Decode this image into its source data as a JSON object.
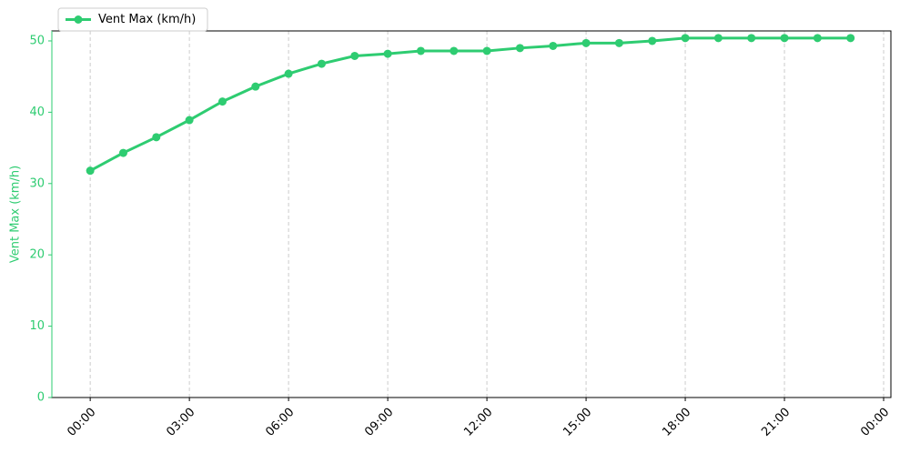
{
  "chart_data": {
    "type": "line",
    "x": [
      0,
      1,
      2,
      3,
      4,
      5,
      6,
      7,
      8,
      9,
      10,
      11,
      12,
      13,
      14,
      15,
      16,
      17,
      18,
      19,
      20,
      21,
      22,
      23
    ],
    "series": [
      {
        "name": "Vent Max (km/h)",
        "color": "#2ecc71",
        "values": [
          31.8,
          34.3,
          36.5,
          38.9,
          41.5,
          43.6,
          45.4,
          46.8,
          47.9,
          48.2,
          48.6,
          48.6,
          48.6,
          49.0,
          49.3,
          49.7,
          49.7,
          50.0,
          50.4,
          50.4,
          50.4,
          50.4,
          50.4,
          50.4
        ]
      }
    ],
    "ylabel": "Vent Max (km/h)",
    "xlim": [
      -1.16,
      24.22
    ],
    "xticks": [
      {
        "value": 0,
        "label": "00:00"
      },
      {
        "value": 3,
        "label": "03:00"
      },
      {
        "value": 6,
        "label": "06:00"
      },
      {
        "value": 9,
        "label": "09:00"
      },
      {
        "value": 12,
        "label": "12:00"
      },
      {
        "value": 15,
        "label": "15:00"
      },
      {
        "value": 18,
        "label": "18:00"
      },
      {
        "value": 21,
        "label": "21:00"
      },
      {
        "value": 24,
        "label": "00:00"
      }
    ],
    "ylim": [
      0,
      51.4
    ],
    "yticks": [
      0,
      10,
      20,
      30,
      40,
      50
    ],
    "grid": "x",
    "legend": "upper left"
  }
}
